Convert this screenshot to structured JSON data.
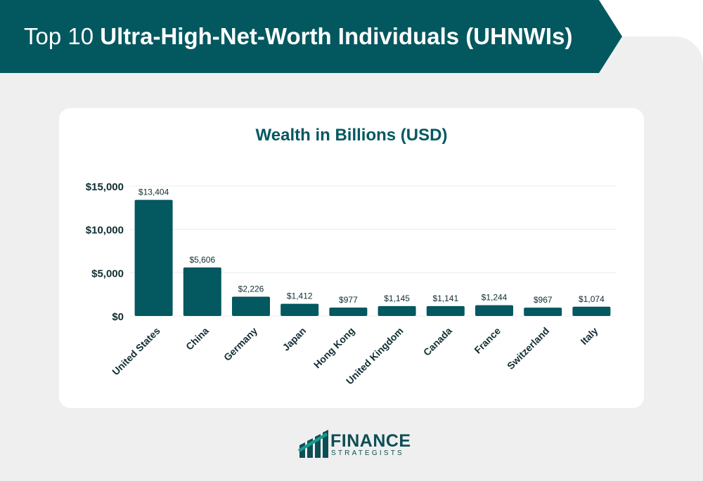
{
  "header": {
    "title_regular": "Top 10",
    "title_bold": "Ultra-High-Net-Worth Individuals (UHNWIs)"
  },
  "colors": {
    "banner": "#03585f",
    "bar": "#045860",
    "background": "#efefef",
    "text_dark": "#0f2d32"
  },
  "chart_data": {
    "type": "bar",
    "title": "Wealth in Billions (USD)",
    "xlabel": "",
    "ylabel": "",
    "ylim": [
      0,
      15000
    ],
    "yticks": [
      0,
      5000,
      10000,
      15000
    ],
    "ytick_labels": [
      "$0",
      "$5,000",
      "$10,000",
      "$15,000"
    ],
    "grid": true,
    "categories": [
      "United States",
      "China",
      "Germany",
      "Japan",
      "Hong Kong",
      "United Kingdom",
      "Canada",
      "France",
      "Switzerland",
      "Italy"
    ],
    "values": [
      13404,
      5606,
      2226,
      1412,
      977,
      1145,
      1141,
      1244,
      967,
      1074
    ],
    "value_labels": [
      "$13,404",
      "$5,606",
      "$2,226",
      "$1,412",
      "$977",
      "$1,145",
      "$1,141",
      "$1,244",
      "$967",
      "$1,074"
    ]
  },
  "logo": {
    "name": "FINANCE",
    "tagline": "STRATEGISTS",
    "icon": "rising-bars-logo-icon"
  }
}
